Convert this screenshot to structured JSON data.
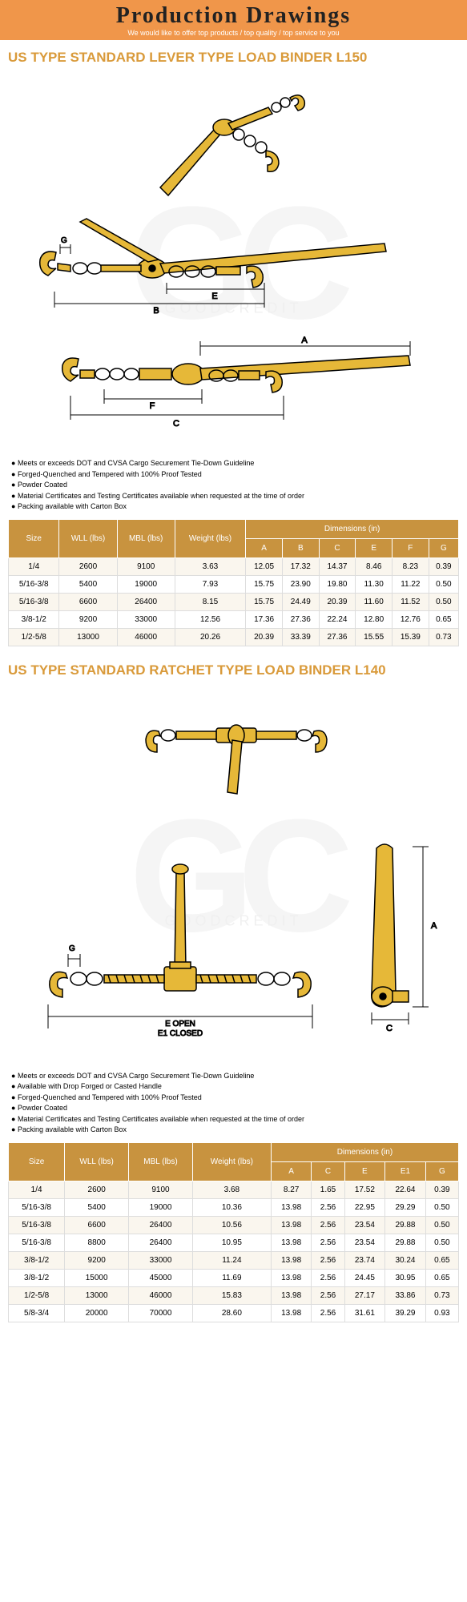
{
  "header": {
    "title": "Production Drawings",
    "subtitle": "We would like to offer top products / top quality / top service to you"
  },
  "watermark": {
    "main": "GC",
    "sub": "GOODCREDIT"
  },
  "product1": {
    "title": "US TYPE STANDARD LEVER TYPE LOAD BINDER L150",
    "bullets": [
      "Meets or exceeds DOT and CVSA Cargo Securement Tie-Down Guideline",
      "Forged-Quenched and Tempered with 100% Proof Tested",
      "Powder Coated",
      "Material Certificates and Testing Certificates available when requested at the time of order",
      "Packing available with Carton Box"
    ],
    "table": {
      "headers_main": [
        "Size",
        "WLL (lbs)",
        "MBL (lbs)",
        "Weight (lbs)"
      ],
      "dim_label": "Dimensions (in)",
      "dim_cols": [
        "A",
        "B",
        "C",
        "E",
        "F",
        "G"
      ],
      "rows": [
        [
          "1/4",
          "2600",
          "9100",
          "3.63",
          "12.05",
          "17.32",
          "14.37",
          "8.46",
          "8.23",
          "0.39"
        ],
        [
          "5/16-3/8",
          "5400",
          "19000",
          "7.93",
          "15.75",
          "23.90",
          "19.80",
          "11.30",
          "11.22",
          "0.50"
        ],
        [
          "5/16-3/8",
          "6600",
          "26400",
          "8.15",
          "15.75",
          "24.49",
          "20.39",
          "11.60",
          "11.52",
          "0.50"
        ],
        [
          "3/8-1/2",
          "9200",
          "33000",
          "12.56",
          "17.36",
          "27.36",
          "22.24",
          "12.80",
          "12.76",
          "0.65"
        ],
        [
          "1/2-5/8",
          "13000",
          "46000",
          "20.26",
          "20.39",
          "33.39",
          "27.36",
          "15.55",
          "15.39",
          "0.73"
        ]
      ]
    },
    "colors": {
      "header_bg": "#c8933f",
      "header_text": "#ffffff",
      "row_odd": "#faf6ee",
      "row_even": "#ffffff",
      "title_color": "#d99a3a"
    }
  },
  "product2": {
    "title": "US TYPE STANDARD RATCHET TYPE LOAD BINDER L140",
    "bullets": [
      "Meets or exceeds DOT and CVSA Cargo Securement Tie-Down Guideline",
      "Available with Drop Forged or Casted Handle",
      "Forged-Quenched and Tempered with 100% Proof Tested",
      "Powder Coated",
      "Material Certificates and Testing Certificates available when requested at the time of order",
      "Packing available with Carton Box"
    ],
    "table": {
      "headers_main": [
        "Size",
        "WLL (lbs)",
        "MBL (lbs)",
        "Weight (lbs)"
      ],
      "dim_label": "Dimensions (in)",
      "dim_cols": [
        "A",
        "C",
        "E",
        "E1",
        "G"
      ],
      "rows": [
        [
          "1/4",
          "2600",
          "9100",
          "3.68",
          "8.27",
          "1.65",
          "17.52",
          "22.64",
          "0.39"
        ],
        [
          "5/16-3/8",
          "5400",
          "19000",
          "10.36",
          "13.98",
          "2.56",
          "22.95",
          "29.29",
          "0.50"
        ],
        [
          "5/16-3/8",
          "6600",
          "26400",
          "10.56",
          "13.98",
          "2.56",
          "23.54",
          "29.88",
          "0.50"
        ],
        [
          "5/16-3/8",
          "8800",
          "26400",
          "10.95",
          "13.98",
          "2.56",
          "23.54",
          "29.88",
          "0.50"
        ],
        [
          "3/8-1/2",
          "9200",
          "33000",
          "11.24",
          "13.98",
          "2.56",
          "23.74",
          "30.24",
          "0.65"
        ],
        [
          "3/8-1/2",
          "15000",
          "45000",
          "11.69",
          "13.98",
          "2.56",
          "24.45",
          "30.95",
          "0.65"
        ],
        [
          "1/2-5/8",
          "13000",
          "46000",
          "15.83",
          "13.98",
          "2.56",
          "27.17",
          "33.86",
          "0.73"
        ],
        [
          "5/8-3/4",
          "20000",
          "70000",
          "28.60",
          "13.98",
          "2.56",
          "31.61",
          "39.29",
          "0.93"
        ]
      ]
    },
    "colors": {
      "header_bg": "#c8933f",
      "header_text": "#ffffff",
      "row_odd": "#faf6ee",
      "row_even": "#ffffff",
      "title_color": "#d99a3a"
    }
  },
  "diagram_labels": {
    "d1": {
      "dims": [
        "A",
        "B",
        "C",
        "E",
        "F",
        "G"
      ],
      "label_open": "E OPEN",
      "label_closed": "E1 CLOSED"
    }
  },
  "style": {
    "banner_bg": "#f0964a",
    "diagram_fill": "#e6b838",
    "diagram_stroke": "#000000"
  }
}
